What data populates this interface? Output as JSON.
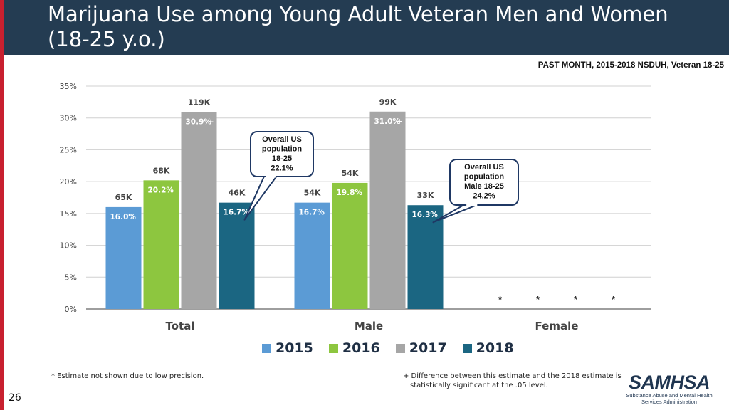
{
  "slide": {
    "title_line1": "Marijuana Use among Young Adult Veteran Men and Women",
    "title_line2": "(18-25 y.o.)",
    "source_label": "PAST MONTH, 2015-2018 NSDUH, Veteran 18-25",
    "page_number": "26",
    "footnote_left": "* Estimate not shown due to low precision.",
    "footnote_right_line1": "+ Difference between this estimate and the 2018 estimate is",
    "footnote_right_line2": "statistically significant at the .05 level.",
    "logo_main": "SAMHSA",
    "logo_sub_line1": "Substance Abuse and Mental Health",
    "logo_sub_line2": "Services Administration"
  },
  "colors": {
    "2015": "#5b9bd5",
    "2016": "#8dc63f",
    "2017": "#a6a6a6",
    "2018": "#1b6682",
    "header": "#243c52",
    "accent_red": "#c8202f",
    "callout_border": "#1f3864"
  },
  "chart_data": {
    "type": "bar",
    "categories": [
      "Total",
      "Male",
      "Female"
    ],
    "ylim": [
      0,
      35
    ],
    "yticks": [
      "0%",
      "5%",
      "10%",
      "15%",
      "20%",
      "25%",
      "30%",
      "35%"
    ],
    "series": [
      {
        "name": "2015",
        "values": [
          16.0,
          16.7,
          null
        ],
        "labels": [
          "16.0%",
          "16.7%",
          ""
        ],
        "counts": [
          "65K",
          "54K",
          ""
        ],
        "sig": [
          "",
          "",
          ""
        ]
      },
      {
        "name": "2016",
        "values": [
          20.2,
          19.8,
          null
        ],
        "labels": [
          "20.2%",
          "19.8%",
          ""
        ],
        "counts": [
          "68K",
          "54K",
          ""
        ],
        "sig": [
          "",
          "",
          ""
        ]
      },
      {
        "name": "2017",
        "values": [
          30.9,
          31.0,
          null
        ],
        "labels": [
          "30.9%",
          "31.0%",
          ""
        ],
        "counts": [
          "119K",
          "99K",
          ""
        ],
        "sig": [
          "+",
          "+",
          ""
        ]
      },
      {
        "name": "2018",
        "values": [
          16.7,
          16.3,
          null
        ],
        "labels": [
          "16.7%",
          "16.3%",
          ""
        ],
        "counts": [
          "46K",
          "33K",
          ""
        ],
        "sig": [
          "",
          "",
          ""
        ]
      }
    ],
    "suppressed_marker": "*",
    "callouts": [
      {
        "lines": [
          "Overall US",
          "population",
          "18-25",
          "22.1%"
        ],
        "category": "Total",
        "series": "2018"
      },
      {
        "lines": [
          "Overall US",
          "population",
          "Male 18-25",
          "24.2%"
        ],
        "category": "Male",
        "series": "2018"
      }
    ]
  }
}
